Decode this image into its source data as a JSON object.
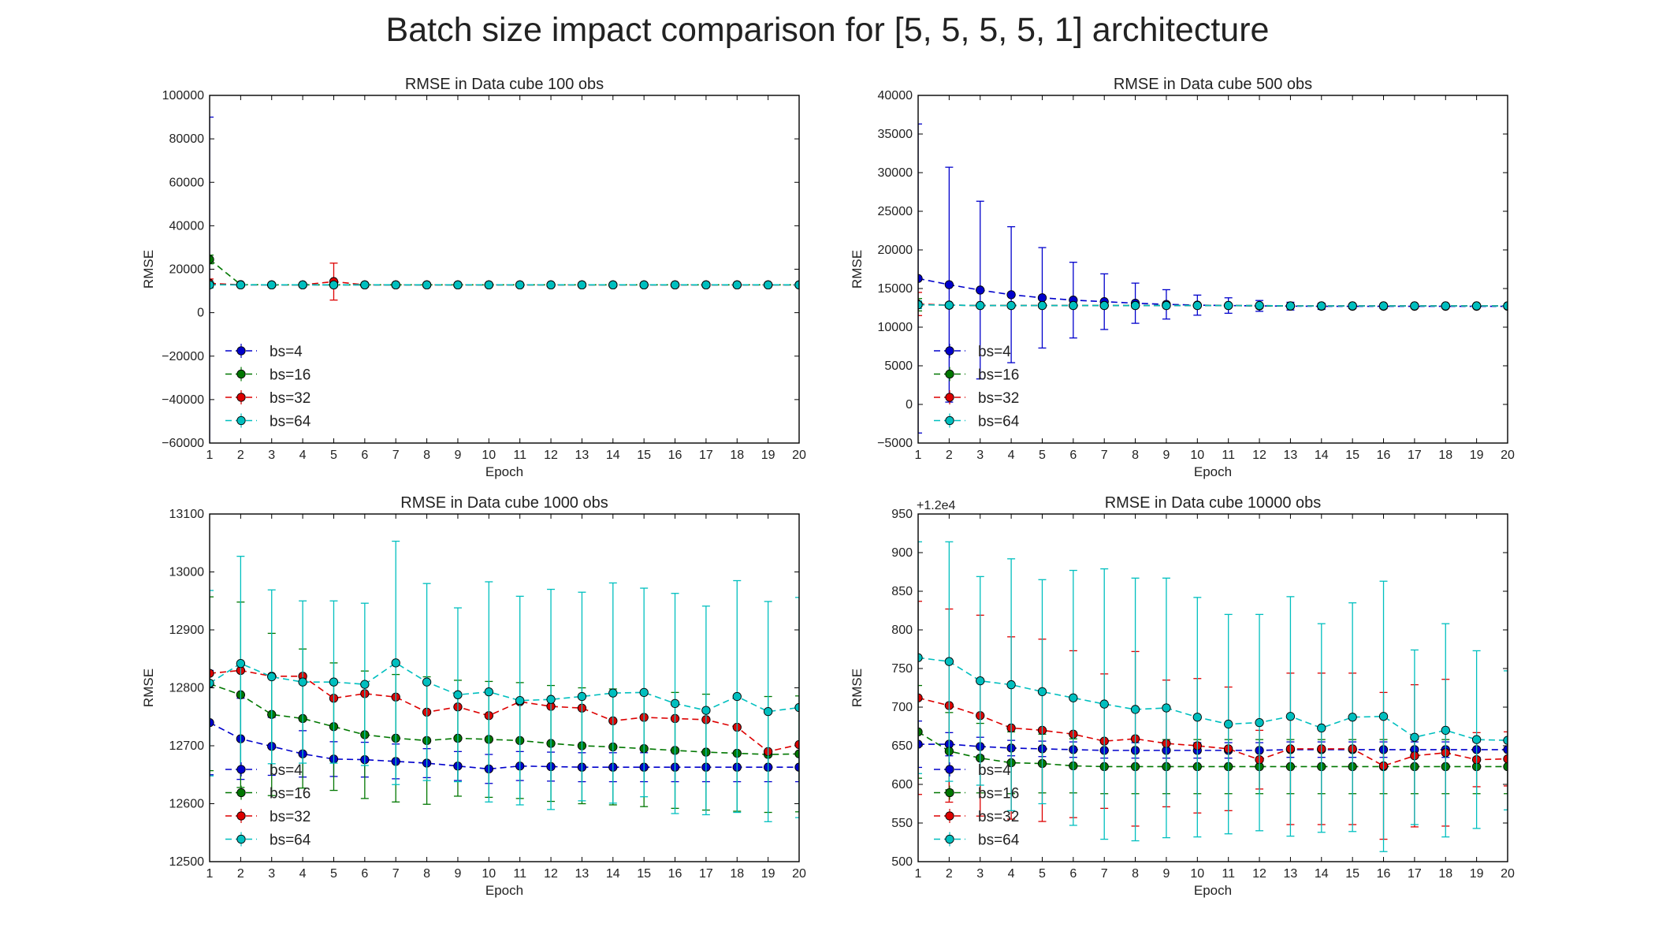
{
  "figure": {
    "title": "Batch size impact comparison for [5, 5, 5, 5, 1] architecture"
  },
  "chart_data": [
    {
      "type": "line",
      "title": "RMSE in Data cube 100 obs",
      "xlabel": "Epoch",
      "ylabel": "RMSE",
      "xlim": [
        1,
        20
      ],
      "ylim": [
        -60000,
        100000
      ],
      "yticks": [
        -60000,
        -40000,
        -20000,
        0,
        20000,
        40000,
        60000,
        80000,
        100000
      ],
      "ytick_labels": [
        "−60000",
        "−40000",
        "−20000",
        "0",
        "20000",
        "40000",
        "60000",
        "80000",
        "100000"
      ],
      "offset_label": "",
      "x": [
        1,
        2,
        3,
        4,
        5,
        6,
        7,
        8,
        9,
        10,
        11,
        12,
        13,
        14,
        15,
        16,
        17,
        18,
        19,
        20
      ],
      "series": [
        {
          "name": "bs=4",
          "color": "#0000cc",
          "values": [
            13000,
            12800,
            12800,
            12800,
            12800,
            12800,
            12800,
            12800,
            12800,
            12800,
            12800,
            12800,
            12800,
            12800,
            12800,
            12800,
            12800,
            12800,
            12800,
            12800
          ],
          "errors": [
            77000,
            300,
            100,
            100,
            100,
            100,
            100,
            100,
            100,
            100,
            100,
            100,
            100,
            100,
            100,
            100,
            100,
            100,
            100,
            100
          ]
        },
        {
          "name": "bs=16",
          "color": "#007700",
          "values": [
            24500,
            12900,
            12800,
            12800,
            12800,
            12800,
            12800,
            12800,
            12800,
            12800,
            12800,
            12800,
            12800,
            12800,
            12800,
            12800,
            12800,
            12800,
            12800,
            12800
          ],
          "errors": [
            2000,
            300,
            100,
            100,
            100,
            100,
            100,
            100,
            100,
            100,
            100,
            100,
            100,
            100,
            100,
            100,
            100,
            100,
            100,
            100
          ]
        },
        {
          "name": "bs=32",
          "color": "#dd0000",
          "values": [
            13500,
            12800,
            12800,
            12800,
            14300,
            12800,
            12800,
            12800,
            12800,
            12800,
            12800,
            12800,
            12800,
            12800,
            12800,
            12800,
            12800,
            12800,
            12800,
            12800
          ],
          "errors": [
            2000,
            200,
            100,
            100,
            8500,
            100,
            100,
            100,
            100,
            100,
            100,
            100,
            100,
            100,
            100,
            100,
            100,
            100,
            100,
            100
          ]
        },
        {
          "name": "bs=64",
          "color": "#00bfbf",
          "values": [
            12800,
            12800,
            12800,
            12800,
            12800,
            12800,
            12800,
            12800,
            12800,
            12800,
            12800,
            12800,
            12800,
            12800,
            12800,
            12800,
            12800,
            12800,
            12800,
            12800
          ],
          "errors": [
            1500,
            200,
            100,
            100,
            100,
            100,
            100,
            100,
            100,
            100,
            100,
            100,
            100,
            100,
            100,
            100,
            100,
            100,
            100,
            100
          ]
        }
      ]
    },
    {
      "type": "line",
      "title": "RMSE in Data cube 500 obs",
      "xlabel": "Epoch",
      "ylabel": "RMSE",
      "xlim": [
        1,
        20
      ],
      "ylim": [
        -5000,
        40000
      ],
      "yticks": [
        -5000,
        0,
        5000,
        10000,
        15000,
        20000,
        25000,
        30000,
        35000,
        40000
      ],
      "ytick_labels": [
        "−5000",
        "0",
        "5000",
        "10000",
        "15000",
        "20000",
        "25000",
        "30000",
        "35000",
        "40000"
      ],
      "offset_label": "",
      "x": [
        1,
        2,
        3,
        4,
        5,
        6,
        7,
        8,
        9,
        10,
        11,
        12,
        13,
        14,
        15,
        16,
        17,
        18,
        19,
        20
      ],
      "series": [
        {
          "name": "bs=4",
          "color": "#0000cc",
          "values": [
            16300,
            15500,
            14800,
            14200,
            13800,
            13500,
            13300,
            13100,
            12950,
            12850,
            12800,
            12750,
            12720,
            12700,
            12700,
            12700,
            12700,
            12700,
            12700,
            12700
          ],
          "errors": [
            20000,
            15200,
            11500,
            8800,
            6500,
            4900,
            3600,
            2600,
            1900,
            1300,
            1000,
            700,
            500,
            400,
            300,
            300,
            200,
            200,
            200,
            200
          ]
        },
        {
          "name": "bs=16",
          "color": "#007700",
          "values": [
            12900,
            12850,
            12800,
            12800,
            12800,
            12800,
            12800,
            12800,
            12800,
            12800,
            12800,
            12750,
            12750,
            12750,
            12750,
            12750,
            12750,
            12750,
            12750,
            12750
          ],
          "errors": [
            800,
            300,
            200,
            200,
            200,
            200,
            200,
            200,
            200,
            200,
            200,
            200,
            200,
            200,
            200,
            200,
            200,
            200,
            200,
            200
          ]
        },
        {
          "name": "bs=32",
          "color": "#dd0000",
          "values": [
            13000,
            12850,
            12800,
            12800,
            12800,
            12800,
            12800,
            12800,
            12800,
            12800,
            12800,
            12800,
            12750,
            12750,
            12750,
            12750,
            12750,
            12750,
            12750,
            12750
          ],
          "errors": [
            1500,
            300,
            200,
            200,
            200,
            200,
            200,
            200,
            200,
            200,
            200,
            200,
            200,
            200,
            200,
            200,
            200,
            200,
            200,
            200
          ]
        },
        {
          "name": "bs=64",
          "color": "#00bfbf",
          "values": [
            12900,
            12850,
            12800,
            12800,
            12800,
            12800,
            12800,
            12800,
            12800,
            12800,
            12800,
            12800,
            12750,
            12750,
            12750,
            12750,
            12750,
            12750,
            12750,
            12750
          ],
          "errors": [
            500,
            300,
            200,
            200,
            200,
            200,
            200,
            200,
            200,
            200,
            200,
            200,
            200,
            200,
            200,
            200,
            200,
            200,
            200,
            200
          ]
        }
      ]
    },
    {
      "type": "line",
      "title": "RMSE in Data cube 1000 obs",
      "xlabel": "Epoch",
      "ylabel": "RMSE",
      "xlim": [
        1,
        20
      ],
      "ylim": [
        12500,
        13100
      ],
      "yticks": [
        12500,
        12600,
        12700,
        12800,
        12900,
        13000,
        13100
      ],
      "ytick_labels": [
        "12500",
        "12600",
        "12700",
        "12800",
        "12900",
        "13000",
        "13100"
      ],
      "offset_label": "",
      "x": [
        1,
        2,
        3,
        4,
        5,
        6,
        7,
        8,
        9,
        10,
        11,
        12,
        13,
        14,
        15,
        16,
        17,
        18,
        19,
        20
      ],
      "series": [
        {
          "name": "bs=4",
          "color": "#0000cc",
          "values": [
            12740,
            12712,
            12699,
            12686,
            12677,
            12676,
            12673,
            12670,
            12665,
            12660,
            12665,
            12664,
            12663,
            12663,
            12663,
            12663,
            12663,
            12663,
            12663,
            12663
          ],
          "errors": [
            90,
            70,
            50,
            40,
            30,
            30,
            30,
            25,
            25,
            25,
            25,
            25,
            25,
            25,
            25,
            25,
            25,
            25,
            25,
            25
          ]
        },
        {
          "name": "bs=16",
          "color": "#007700",
          "values": [
            12807,
            12788,
            12754,
            12747,
            12733,
            12719,
            12713,
            12709,
            12713,
            12711,
            12709,
            12704,
            12700,
            12698,
            12695,
            12692,
            12689,
            12687,
            12685,
            12686
          ],
          "errors": [
            150,
            160,
            140,
            120,
            110,
            110,
            110,
            110,
            100,
            100,
            100,
            100,
            100,
            100,
            100,
            100,
            100,
            100,
            100,
            100
          ]
        },
        {
          "name": "bs=32",
          "color": "#dd0000",
          "values": [
            12825,
            12830,
            12820,
            12820,
            12782,
            12790,
            12784,
            12758,
            12767,
            12752,
            12776,
            12768,
            12765,
            12743,
            12749,
            12747,
            12745,
            12732,
            12690,
            12702
          ]
        },
        {
          "name": "bs=64",
          "color": "#00bfbf",
          "values": [
            12808,
            12842,
            12819,
            12810,
            12810,
            12806,
            12843,
            12810,
            12788,
            12793,
            12778,
            12780,
            12785,
            12791,
            12792,
            12773,
            12761,
            12785,
            12759,
            12766
          ],
          "errors": [
            160,
            185,
            150,
            140,
            140,
            140,
            210,
            170,
            150,
            190,
            180,
            190,
            180,
            190,
            180,
            190,
            180,
            200,
            190,
            190
          ]
        }
      ]
    },
    {
      "type": "line",
      "title": "RMSE in Data cube 10000 obs",
      "xlabel": "Epoch",
      "ylabel": "RMSE",
      "xlim": [
        1,
        20
      ],
      "ylim": [
        500,
        950
      ],
      "yticks": [
        500,
        550,
        600,
        650,
        700,
        750,
        800,
        850,
        900,
        950
      ],
      "ytick_labels": [
        "500",
        "550",
        "600",
        "650",
        "700",
        "750",
        "800",
        "850",
        "900",
        "950"
      ],
      "offset_label": "+1.2e4",
      "x": [
        1,
        2,
        3,
        4,
        5,
        6,
        7,
        8,
        9,
        10,
        11,
        12,
        13,
        14,
        15,
        16,
        17,
        18,
        19,
        20
      ],
      "series": [
        {
          "name": "bs=4",
          "color": "#0000cc",
          "values": [
            652,
            652,
            649,
            647,
            646,
            645,
            644,
            644,
            644,
            644,
            644,
            644,
            645,
            645,
            645,
            645,
            645,
            645,
            645,
            645
          ],
          "errors": [
            30,
            15,
            12,
            10,
            10,
            10,
            10,
            10,
            10,
            10,
            10,
            10,
            10,
            10,
            10,
            10,
            10,
            10,
            10,
            10
          ]
        },
        {
          "name": "bs=16",
          "color": "#007700",
          "values": [
            668,
            643,
            634,
            628,
            627,
            624,
            623,
            623,
            623,
            623,
            623,
            623,
            623,
            623,
            623,
            623,
            623,
            623,
            623,
            623
          ],
          "errors": [
            60,
            50,
            45,
            40,
            38,
            35,
            35,
            35,
            35,
            35,
            35,
            35,
            35,
            35,
            35,
            35,
            35,
            35,
            35,
            35
          ]
        },
        {
          "name": "bs=32",
          "color": "#dd0000",
          "values": [
            712,
            702,
            689,
            673,
            670,
            665,
            656,
            659,
            653,
            650,
            646,
            632,
            646,
            646,
            646,
            624,
            637,
            641,
            632,
            633
          ],
          "errors": [
            125,
            125,
            130,
            118,
            118,
            108,
            87,
            113,
            82,
            87,
            80,
            38,
            98,
            98,
            98,
            95,
            92,
            95,
            35,
            35
          ]
        },
        {
          "name": "bs=64",
          "color": "#00bfbf",
          "values": [
            764,
            759,
            734,
            729,
            720,
            712,
            704,
            697,
            699,
            687,
            678,
            680,
            688,
            673,
            687,
            688,
            661,
            670,
            658,
            657
          ],
          "errors": [
            150,
            155,
            135,
            163,
            145,
            165,
            175,
            170,
            168,
            155,
            142,
            140,
            155,
            135,
            148,
            175,
            113,
            138,
            115,
            90
          ]
        }
      ]
    }
  ]
}
